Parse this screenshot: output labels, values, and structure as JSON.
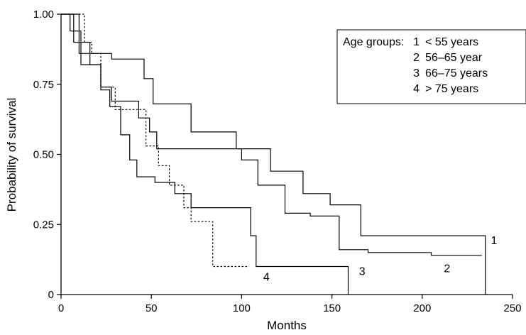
{
  "chart_data": {
    "type": "line",
    "subtype": "kaplan-meier-step",
    "title": "",
    "xlabel": "Months",
    "ylabel": "Probability of survival",
    "xlim": [
      0,
      250
    ],
    "ylim": [
      0,
      1
    ],
    "x_ticks": [
      "0",
      "50",
      "100",
      "150",
      "200",
      "250"
    ],
    "y_ticks": [
      "0",
      "0.25",
      "0.50",
      "0.75",
      "1.00"
    ],
    "grid": false,
    "legend": {
      "position": "top-right",
      "header": "Age groups:",
      "entries": [
        {
          "number": "1",
          "label": "< 55 years"
        },
        {
          "number": "2",
          "label": "56–65 year"
        },
        {
          "number": "3",
          "label": "66–75 years"
        },
        {
          "number": "4",
          "label": "> 75 years"
        }
      ]
    },
    "series": [
      {
        "name": "1",
        "color": "#000000",
        "dash": "solid",
        "points": [
          [
            0,
            1.0
          ],
          [
            10,
            1.0
          ],
          [
            10,
            0.86
          ],
          [
            28,
            0.86
          ],
          [
            28,
            0.84
          ],
          [
            46,
            0.84
          ],
          [
            46,
            0.77
          ],
          [
            51,
            0.77
          ],
          [
            51,
            0.68
          ],
          [
            72,
            0.68
          ],
          [
            72,
            0.58
          ],
          [
            97,
            0.58
          ],
          [
            97,
            0.52
          ],
          [
            116,
            0.52
          ],
          [
            116,
            0.44
          ],
          [
            134,
            0.44
          ],
          [
            134,
            0.36
          ],
          [
            149,
            0.36
          ],
          [
            149,
            0.32
          ],
          [
            166,
            0.32
          ],
          [
            166,
            0.21
          ],
          [
            235,
            0.21
          ],
          [
            235,
            0.0
          ]
        ]
      },
      {
        "name": "2",
        "color": "#000000",
        "dash": "solid",
        "points": [
          [
            0,
            1.0
          ],
          [
            5,
            1.0
          ],
          [
            5,
            0.94
          ],
          [
            11,
            0.94
          ],
          [
            11,
            0.82
          ],
          [
            22,
            0.82
          ],
          [
            22,
            0.74
          ],
          [
            28,
            0.74
          ],
          [
            28,
            0.69
          ],
          [
            43,
            0.69
          ],
          [
            43,
            0.63
          ],
          [
            49,
            0.63
          ],
          [
            49,
            0.58
          ],
          [
            53,
            0.58
          ],
          [
            53,
            0.52
          ],
          [
            100,
            0.52
          ],
          [
            100,
            0.48
          ],
          [
            109,
            0.48
          ],
          [
            109,
            0.39
          ],
          [
            124,
            0.39
          ],
          [
            124,
            0.29
          ],
          [
            138,
            0.29
          ],
          [
            138,
            0.28
          ],
          [
            154,
            0.28
          ],
          [
            154,
            0.16
          ],
          [
            170,
            0.16
          ],
          [
            170,
            0.15
          ],
          [
            205,
            0.15
          ],
          [
            205,
            0.14
          ],
          [
            233,
            0.14
          ]
        ]
      },
      {
        "name": "3",
        "color": "#000000",
        "dash": "solid",
        "points": [
          [
            0,
            1.0
          ],
          [
            7,
            1.0
          ],
          [
            7,
            0.9
          ],
          [
            16,
            0.9
          ],
          [
            16,
            0.82
          ],
          [
            22,
            0.82
          ],
          [
            22,
            0.73
          ],
          [
            27,
            0.73
          ],
          [
            27,
            0.67
          ],
          [
            33,
            0.67
          ],
          [
            33,
            0.57
          ],
          [
            38,
            0.57
          ],
          [
            38,
            0.48
          ],
          [
            42,
            0.48
          ],
          [
            42,
            0.42
          ],
          [
            52,
            0.42
          ],
          [
            52,
            0.4
          ],
          [
            63,
            0.4
          ],
          [
            63,
            0.36
          ],
          [
            72,
            0.36
          ],
          [
            72,
            0.31
          ],
          [
            105,
            0.31
          ],
          [
            105,
            0.21
          ],
          [
            108,
            0.21
          ],
          [
            108,
            0.1
          ],
          [
            159,
            0.1
          ],
          [
            159,
            0.0
          ]
        ]
      },
      {
        "name": "4",
        "color": "#000000",
        "dash": "dotted",
        "points": [
          [
            0,
            1.0
          ],
          [
            13,
            1.0
          ],
          [
            13,
            0.9
          ],
          [
            17,
            0.9
          ],
          [
            17,
            0.86
          ],
          [
            22,
            0.86
          ],
          [
            22,
            0.74
          ],
          [
            30,
            0.74
          ],
          [
            30,
            0.66
          ],
          [
            47,
            0.66
          ],
          [
            47,
            0.53
          ],
          [
            54,
            0.53
          ],
          [
            54,
            0.46
          ],
          [
            60,
            0.46
          ],
          [
            60,
            0.39
          ],
          [
            68,
            0.39
          ],
          [
            68,
            0.31
          ],
          [
            72,
            0.31
          ],
          [
            72,
            0.26
          ],
          [
            84,
            0.26
          ],
          [
            84,
            0.1
          ],
          [
            104,
            0.1
          ]
        ]
      }
    ],
    "curve_labels": [
      {
        "text": "1",
        "x": 238,
        "y": 0.18
      },
      {
        "text": "2",
        "x": 212,
        "y": 0.08
      },
      {
        "text": "3",
        "x": 165,
        "y": 0.07
      },
      {
        "text": "4",
        "x": 112,
        "y": 0.05
      }
    ]
  }
}
